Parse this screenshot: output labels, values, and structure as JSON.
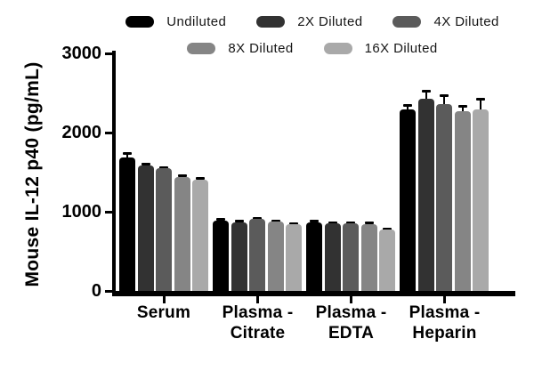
{
  "figure": {
    "background": "#ffffff",
    "axis_color": "#000000",
    "text_color": "#000000"
  },
  "chart_data": {
    "type": "bar",
    "title": "",
    "xlabel": "",
    "ylabel": "Mouse IL-12 p40 (pg/mL)",
    "ylim": [
      0,
      3000
    ],
    "yticks": [
      0,
      1000,
      2000,
      3000
    ],
    "grid": false,
    "legend_position": "top",
    "legend_rows": [
      [
        0,
        1,
        2
      ],
      [
        3,
        4
      ]
    ],
    "categories": [
      "Serum",
      "Plasma - Citrate",
      "Plasma - EDTA",
      "Plasma - Heparin"
    ],
    "category_label_lines": [
      [
        "Serum"
      ],
      [
        "Plasma -",
        "Citrate"
      ],
      [
        "Plasma -",
        "EDTA"
      ],
      [
        "Plasma -",
        "Heparin"
      ]
    ],
    "error_bars": "sd, caps, black",
    "series": [
      {
        "name": "Undiluted",
        "color": "#000000",
        "values": [
          1690,
          890,
          870,
          2290
        ],
        "errors": [
          55,
          15,
          15,
          60
        ]
      },
      {
        "name": "2X Diluted",
        "color": "#323232",
        "values": [
          1580,
          870,
          850,
          2430
        ],
        "errors": [
          25,
          15,
          15,
          95
        ]
      },
      {
        "name": "4X Diluted",
        "color": "#5b5b5b",
        "values": [
          1545,
          905,
          855,
          2360
        ],
        "errors": [
          20,
          12,
          15,
          110
        ]
      },
      {
        "name": "8X Diluted",
        "color": "#858585",
        "values": [
          1435,
          880,
          840,
          2270
        ],
        "errors": [
          25,
          12,
          20,
          70
        ]
      },
      {
        "name": "16X Diluted",
        "color": "#a9a9a9",
        "values": [
          1405,
          840,
          775,
          2290
        ],
        "errors": [
          20,
          12,
          15,
          135
        ]
      }
    ]
  }
}
